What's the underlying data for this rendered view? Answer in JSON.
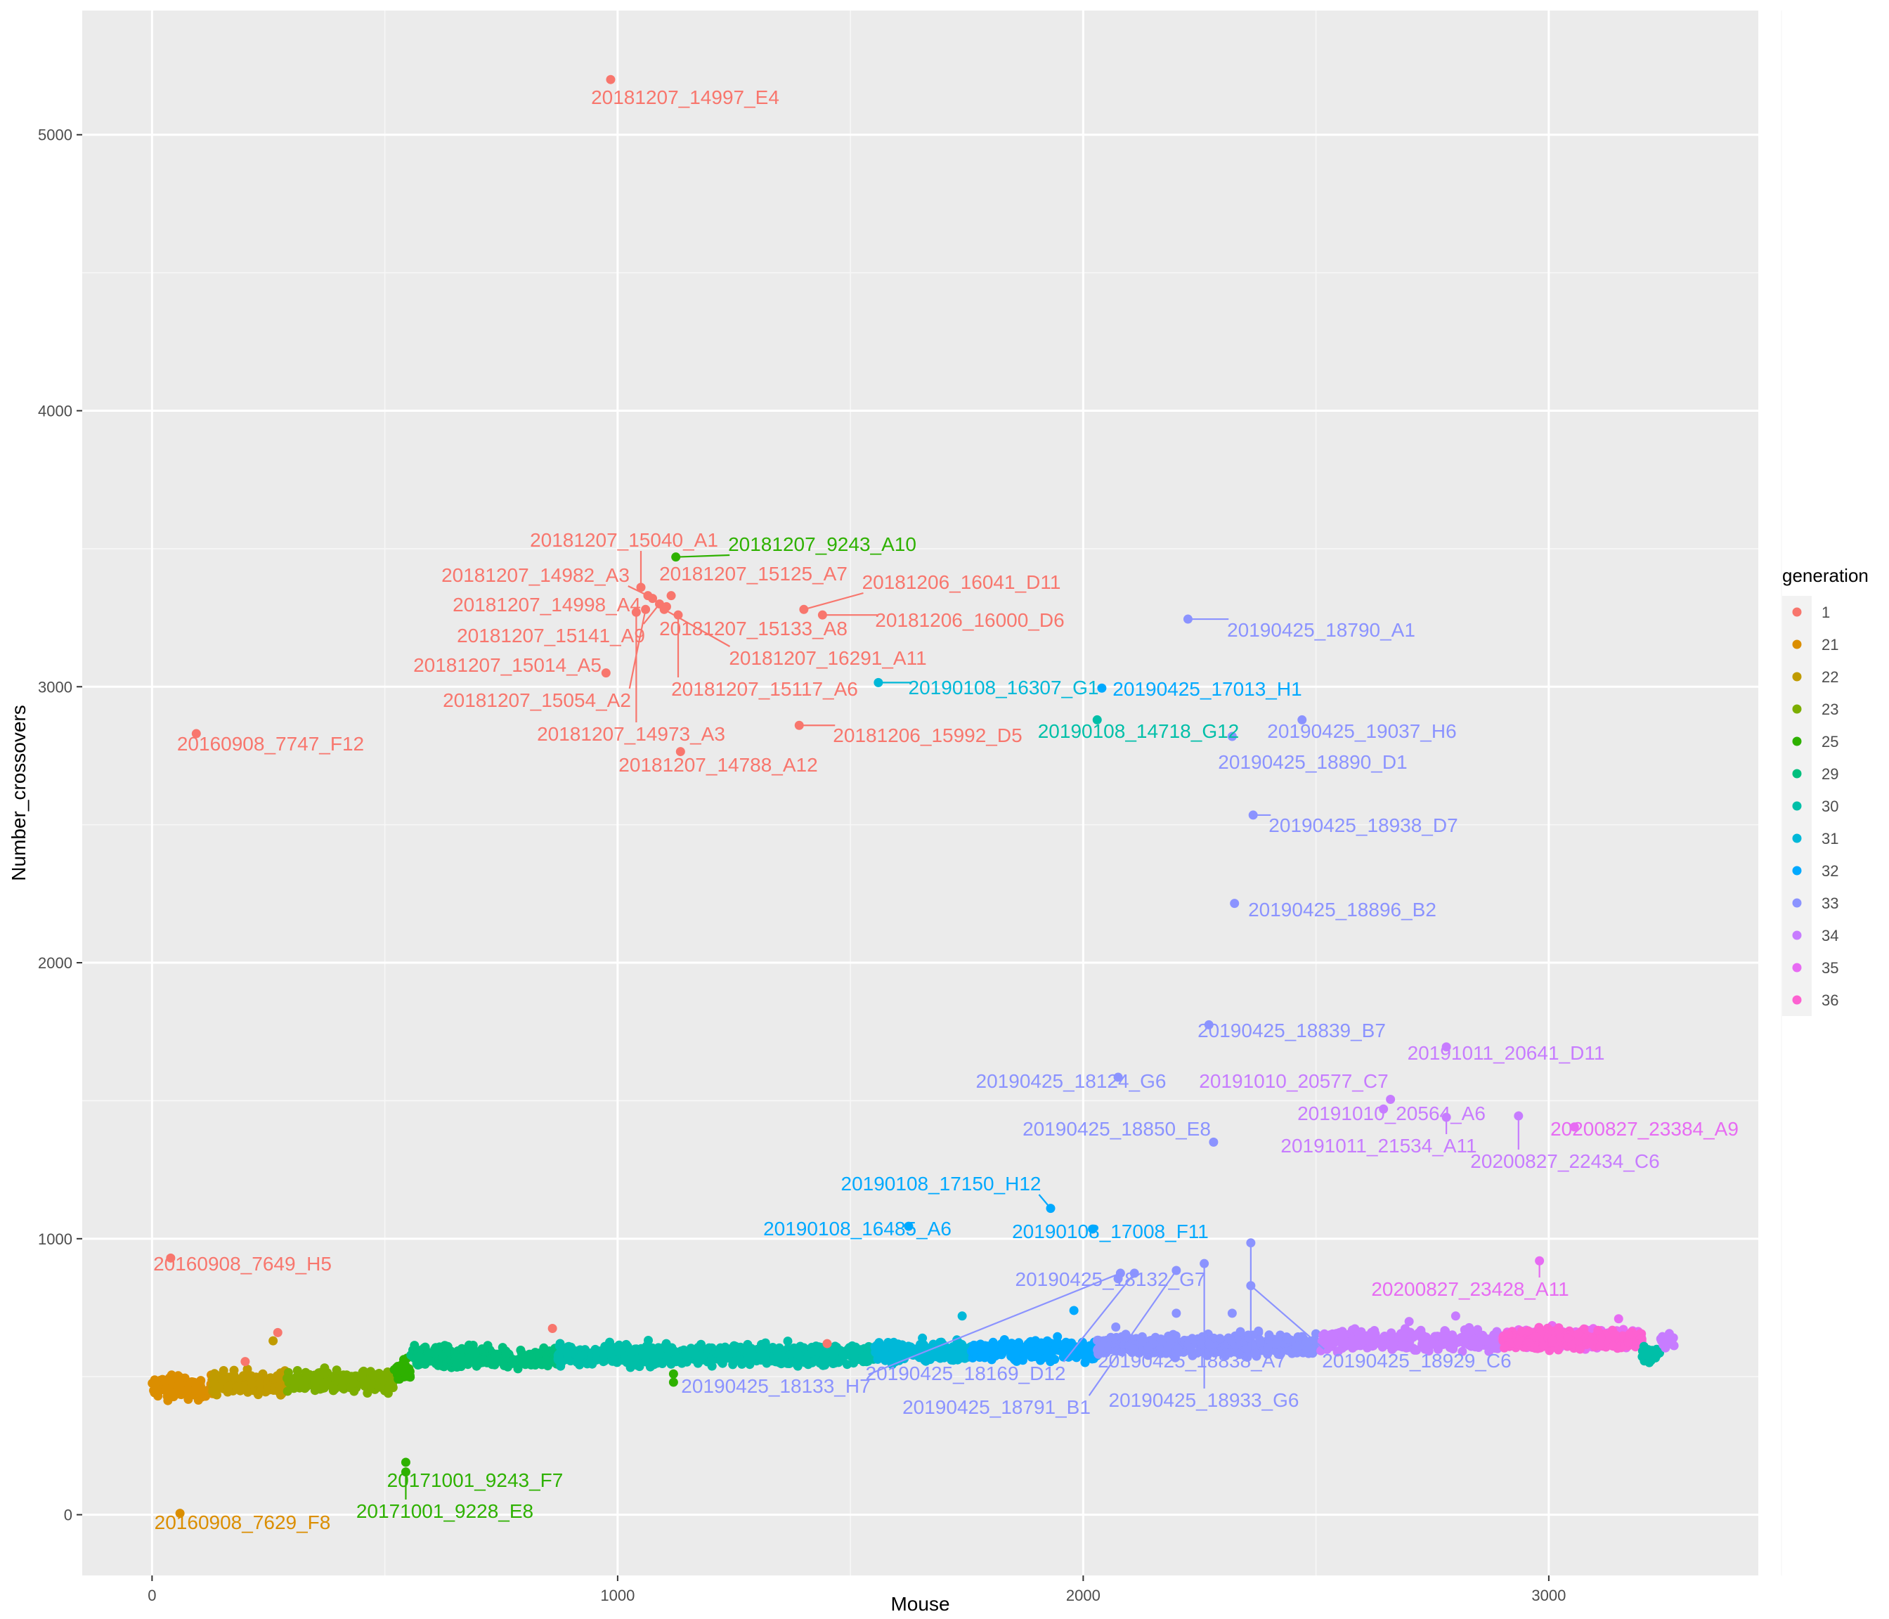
{
  "chart_data": {
    "type": "scatter",
    "xlabel": "Mouse",
    "ylabel": "Number_crossovers",
    "xlim": [
      -150,
      3450
    ],
    "ylim": [
      -220,
      5450
    ],
    "x_ticks": [
      0,
      1000,
      2000,
      3000
    ],
    "y_ticks": [
      0,
      1000,
      2000,
      3000,
      4000,
      5000
    ],
    "grid": true,
    "legend": {
      "title": "generation",
      "position": "right"
    },
    "series": [
      {
        "name": "1",
        "color": "#F8766D"
      },
      {
        "name": "21",
        "color": "#DB8E00"
      },
      {
        "name": "22",
        "color": "#AEA200"
      },
      {
        "name": "23",
        "color": "#64B200"
      },
      {
        "name": "25",
        "color": "#00BD5C"
      },
      {
        "name": "29",
        "color": "#00C1A7"
      },
      {
        "name": "30",
        "color": "#00BADE"
      },
      {
        "name": "31",
        "color": "#00A6FF"
      },
      {
        "name": "32",
        "color": "#B385FF"
      },
      {
        "name": "33",
        "color": "#EF67EB"
      },
      {
        "name": "34",
        "color": "#FF63B6"
      },
      {
        "name": "35",
        "color": "#F8766D"
      },
      {
        "name": "36",
        "color": "#DB8E00"
      }
    ],
    "legend_colors": {
      "1": "#F8766D",
      "21": "#DB8E00",
      "22": "#C09B00",
      "23": "#7CAE00",
      "25": "#2EB100",
      "29": "#00BF7D",
      "30": "#00BFA8",
      "31": "#00B8D8",
      "32": "#00A9FF",
      "33": "#8B93FF",
      "34": "#C77CFF",
      "35": "#E76BF3",
      "36": "#FD61D1"
    },
    "bands": [
      {
        "generation": "21",
        "x_range": [
          0,
          130
        ],
        "y_center": 460,
        "y_spread": 40
      },
      {
        "generation": "22",
        "x_range": [
          130,
          290
        ],
        "y_center": 480,
        "y_spread": 40
      },
      {
        "generation": "23",
        "x_range": [
          290,
          520
        ],
        "y_center": 485,
        "y_spread": 35
      },
      {
        "generation": "25",
        "x_range": [
          520,
          555
        ],
        "y_center": 520,
        "y_spread": 40
      },
      {
        "generation": "29",
        "x_range": [
          555,
          870
        ],
        "y_center": 570,
        "y_spread": 35
      },
      {
        "generation": "30",
        "x_range": [
          870,
          1550
        ],
        "y_center": 580,
        "y_spread": 35
      },
      {
        "generation": "31",
        "x_range": [
          1550,
          1760
        ],
        "y_center": 590,
        "y_spread": 35
      },
      {
        "generation": "32",
        "x_range": [
          1760,
          2030
        ],
        "y_center": 595,
        "y_spread": 35
      },
      {
        "generation": "33",
        "x_range": [
          2030,
          2510
        ],
        "y_center": 615,
        "y_spread": 35
      },
      {
        "generation": "34",
        "x_range": [
          2510,
          2900
        ],
        "y_center": 630,
        "y_spread": 35
      },
      {
        "generation": "35",
        "x_range": [
          2900,
          3200
        ],
        "y_center": 640,
        "y_spread": 30
      },
      {
        "generation": "36",
        "x_range": [
          2900,
          3200
        ],
        "y_center": 635,
        "y_spread": 35
      },
      {
        "generation": "30",
        "x_range": [
          3200,
          3240
        ],
        "y_center": 580,
        "y_spread": 30
      },
      {
        "generation": "34",
        "x_range": [
          3240,
          3270
        ],
        "y_center": 630,
        "y_spread": 25
      }
    ],
    "extra_points": [
      {
        "x": 200,
        "y": 555,
        "generation": "1"
      },
      {
        "x": 270,
        "y": 660,
        "generation": "1"
      },
      {
        "x": 260,
        "y": 630,
        "generation": "22"
      },
      {
        "x": 860,
        "y": 675,
        "generation": "1"
      },
      {
        "x": 1450,
        "y": 620,
        "generation": "1"
      },
      {
        "x": 1120,
        "y": 480,
        "generation": "25"
      },
      {
        "x": 1120,
        "y": 510,
        "generation": "25"
      },
      {
        "x": 1740,
        "y": 720,
        "generation": "31"
      },
      {
        "x": 1980,
        "y": 740,
        "generation": "32"
      },
      {
        "x": 2070,
        "y": 680,
        "generation": "33"
      },
      {
        "x": 2200,
        "y": 730,
        "generation": "33"
      },
      {
        "x": 2320,
        "y": 730,
        "generation": "33"
      },
      {
        "x": 2800,
        "y": 720,
        "generation": "34"
      },
      {
        "x": 2700,
        "y": 700,
        "generation": "34"
      },
      {
        "x": 3150,
        "y": 710,
        "generation": "35"
      }
    ],
    "labeled_points": [
      {
        "label": "20181207_14997_E4",
        "generation": "1",
        "x": 985,
        "y": 5200
      },
      {
        "label": "20181207_9243_A10",
        "generation": "25",
        "x": 1125,
        "y": 3470
      },
      {
        "label": "20181207_15040_A1",
        "generation": "1",
        "x": 1050,
        "y": 3360
      },
      {
        "label": "20181207_14982_A3",
        "generation": "1",
        "x": 1065,
        "y": 3330
      },
      {
        "label": "20181207_15125_A7",
        "generation": "1",
        "x": 1115,
        "y": 3330
      },
      {
        "label": "20181207_14998_A4",
        "generation": "1",
        "x": 1075,
        "y": 3320
      },
      {
        "label": "20181207_15141_A9",
        "generation": "1",
        "x": 1090,
        "y": 3300
      },
      {
        "label": "20181207_15133_A8",
        "generation": "1",
        "x": 1105,
        "y": 3290
      },
      {
        "label": "20181207_16291_A11",
        "generation": "1",
        "x": 1100,
        "y": 3280
      },
      {
        "label": "20181207_15117_A6",
        "generation": "1",
        "x": 1130,
        "y": 3260
      },
      {
        "label": "20181207_15014_A5",
        "generation": "1",
        "x": 975,
        "y": 3050
      },
      {
        "label": "20181207_15054_A2",
        "generation": "1",
        "x": 1060,
        "y": 3280
      },
      {
        "label": "20181207_14973_A3",
        "generation": "1",
        "x": 1040,
        "y": 3270
      },
      {
        "label": "20181207_14788_A12",
        "generation": "1",
        "x": 1135,
        "y": 2765
      },
      {
        "label": "20181206_16041_D11",
        "generation": "1",
        "x": 1400,
        "y": 3280
      },
      {
        "label": "20181206_16000_D6",
        "generation": "1",
        "x": 1440,
        "y": 3260
      },
      {
        "label": "20181206_15992_D5",
        "generation": "1",
        "x": 1390,
        "y": 2860
      },
      {
        "label": "20160908_7747_F12",
        "generation": "1",
        "x": 95,
        "y": 2830
      },
      {
        "label": "20160908_7649_H5",
        "generation": "1",
        "x": 40,
        "y": 930
      },
      {
        "label": "20160908_7629_F8",
        "generation": "21",
        "x": 60,
        "y": 5
      },
      {
        "label": "20171001_9243_F7",
        "generation": "25",
        "x": 545,
        "y": 190
      },
      {
        "label": "20171001_9228_E8",
        "generation": "25",
        "x": 545,
        "y": 155
      },
      {
        "label": "20190108_16307_G1",
        "generation": "31",
        "x": 1560,
        "y": 3015
      },
      {
        "label": "20190108_14718_G12",
        "generation": "30",
        "x": 2030,
        "y": 2880
      },
      {
        "label": "20190425_17013_H1",
        "generation": "32",
        "x": 2040,
        "y": 2995
      },
      {
        "label": "20190425_18790_A1",
        "generation": "33",
        "x": 2225,
        "y": 3245
      },
      {
        "label": "20190425_19037_H6",
        "generation": "33",
        "x": 2470,
        "y": 2880
      },
      {
        "label": "20190425_18890_D1",
        "generation": "33",
        "x": 2320,
        "y": 2820
      },
      {
        "label": "20190425_18938_D7",
        "generation": "33",
        "x": 2365,
        "y": 2535
      },
      {
        "label": "20190425_18896_B2",
        "generation": "33",
        "x": 2325,
        "y": 2215
      },
      {
        "label": "20190425_18839_B7",
        "generation": "33",
        "x": 2270,
        "y": 1775
      },
      {
        "label": "20190425_18124_G6",
        "generation": "33",
        "x": 2075,
        "y": 1585
      },
      {
        "label": "20190425_18850_E8",
        "generation": "33",
        "x": 2280,
        "y": 1350
      },
      {
        "label": "20191011_20641_D11",
        "generation": "34",
        "x": 2780,
        "y": 1695
      },
      {
        "label": "20191010_20577_C7",
        "generation": "34",
        "x": 2660,
        "y": 1505
      },
      {
        "label": "20191010_20564_A6",
        "generation": "34",
        "x": 2645,
        "y": 1470
      },
      {
        "label": "20191011_21534_A11",
        "generation": "34",
        "x": 2780,
        "y": 1440
      },
      {
        "label": "20200827_22434_C6",
        "generation": "34",
        "x": 2935,
        "y": 1445
      },
      {
        "label": "20200827_23384_A9",
        "generation": "35",
        "x": 3055,
        "y": 1405
      },
      {
        "label": "20190108_17150_H12",
        "generation": "32",
        "x": 1930,
        "y": 1110
      },
      {
        "label": "20190108_16485_A6",
        "generation": "32",
        "x": 1625,
        "y": 1045
      },
      {
        "label": "20190108_17008_F11",
        "generation": "32",
        "x": 2020,
        "y": 1035
      },
      {
        "label": "20190425_18132_G7",
        "generation": "33",
        "x": 2075,
        "y": 855
      },
      {
        "label": "20200827_23428_A11",
        "generation": "35",
        "x": 2980,
        "y": 920
      },
      {
        "label": "20190425_18133_H7",
        "generation": "33",
        "x": 2080,
        "y": 875
      },
      {
        "label": "20190425_18169_D12",
        "generation": "33",
        "x": 2110,
        "y": 875
      },
      {
        "label": "20190425_18791_B1",
        "generation": "33",
        "x": 2200,
        "y": 885
      },
      {
        "label": "20190425_18933_G6",
        "generation": "33",
        "x": 2260,
        "y": 910
      },
      {
        "label": "20190425_18838_A7",
        "generation": "33",
        "x": 2360,
        "y": 985
      },
      {
        "label": "20190425_18929_C6",
        "generation": "33",
        "x": 2360,
        "y": 830
      }
    ]
  }
}
